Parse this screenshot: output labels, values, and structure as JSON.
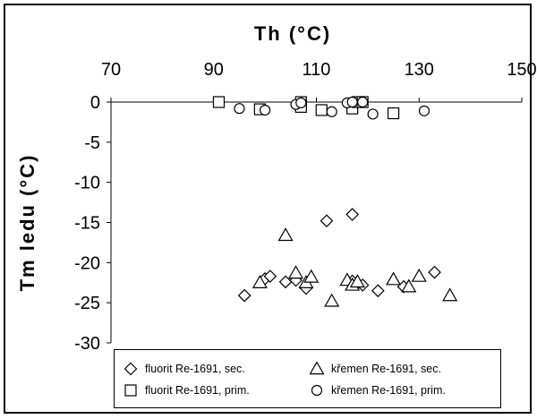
{
  "chart_data": {
    "type": "scatter",
    "xlabel": "Th (°C)",
    "ylabel": "Tm ledu (°C)",
    "xlim": [
      70,
      150
    ],
    "ylim": [
      -30,
      0
    ],
    "x_ticks": [
      "70",
      "90",
      "110",
      "130",
      "150"
    ],
    "y_ticks": [
      "0",
      "-5",
      "-10",
      "-15",
      "-20",
      "-25",
      "-30"
    ],
    "x_axis_position": "top",
    "grid": false,
    "legend_position": "bottom",
    "series": [
      {
        "name": "fluorit Re-1691, sec.",
        "marker": "diamond",
        "points": [
          [
            96,
            -24.1
          ],
          [
            100,
            -22.0
          ],
          [
            101,
            -21.7
          ],
          [
            104,
            -22.4
          ],
          [
            106,
            -22.2
          ],
          [
            108,
            -23.2
          ],
          [
            112,
            -14.8
          ],
          [
            117,
            -14.0
          ],
          [
            117,
            -22.5
          ],
          [
            119,
            -22.8
          ],
          [
            122,
            -23.5
          ],
          [
            127,
            -23.0
          ],
          [
            133,
            -21.2
          ],
          [
            117,
            -22.3
          ]
        ]
      },
      {
        "name": "křemen Re-1691, sec.",
        "marker": "triangle",
        "points": [
          [
            99,
            -22.5
          ],
          [
            104,
            -16.6
          ],
          [
            106,
            -21.3
          ],
          [
            108,
            -22.5
          ],
          [
            109,
            -21.8
          ],
          [
            113,
            -24.8
          ],
          [
            116,
            -22.2
          ],
          [
            117,
            -22.8
          ],
          [
            118,
            -22.4
          ],
          [
            125,
            -22.1
          ],
          [
            128,
            -23.0
          ],
          [
            130,
            -21.7
          ],
          [
            136,
            -24.1
          ]
        ]
      },
      {
        "name": "fluorit Re-1691, prim.",
        "marker": "square",
        "points": [
          [
            91,
            0
          ],
          [
            99,
            -0.9
          ],
          [
            107,
            0
          ],
          [
            107,
            -0.4
          ],
          [
            107,
            -0.6
          ],
          [
            111,
            -1.0
          ],
          [
            117,
            -0.8
          ],
          [
            118,
            0
          ],
          [
            119,
            0
          ],
          [
            125,
            -1.4
          ]
        ]
      },
      {
        "name": "křemen Re-1691, prim.",
        "marker": "circle",
        "points": [
          [
            95,
            -0.8
          ],
          [
            100,
            -1.0
          ],
          [
            106,
            -0.3
          ],
          [
            107,
            -0.1
          ],
          [
            113,
            -1.2
          ],
          [
            116,
            -0.1
          ],
          [
            117,
            0
          ],
          [
            119,
            0
          ],
          [
            121,
            -1.5
          ],
          [
            131,
            -1.1
          ]
        ]
      }
    ]
  }
}
